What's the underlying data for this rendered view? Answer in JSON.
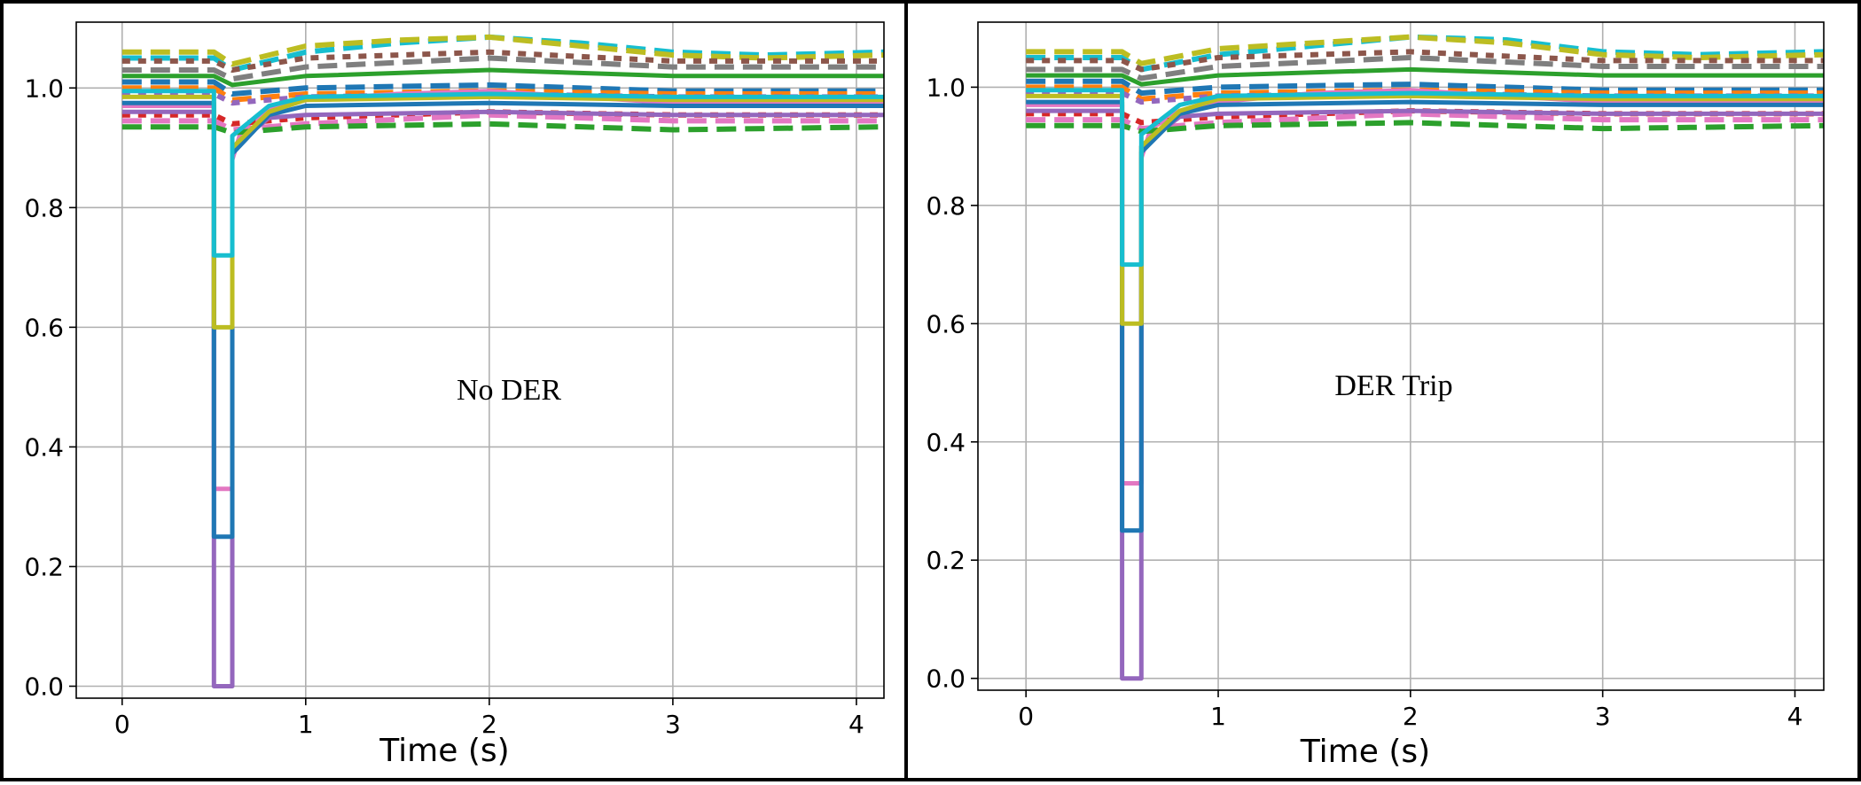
{
  "chart_data": [
    {
      "type": "line",
      "annotation": "No DER",
      "xlabel": "Time (s)",
      "ylabel": "",
      "xlim": [
        -0.25,
        4.15
      ],
      "ylim": [
        -0.02,
        1.11
      ],
      "xticks": [
        0,
        1,
        2,
        3,
        4
      ],
      "yticks": [
        0.0,
        0.2,
        0.4,
        0.6,
        0.8,
        1.0
      ],
      "xtick_labels": [
        "0",
        "1",
        "2",
        "3",
        "4"
      ],
      "ytick_labels": [
        "0.0",
        "0.2",
        "0.4",
        "0.6",
        "0.8",
        "1.0"
      ],
      "grid": true,
      "legend": "none",
      "fault_start": 0.5,
      "fault_end": 0.6,
      "series_summary": {
        "prefault_band": [
          0.93,
          1.06
        ],
        "postfault_band": [
          0.93,
          1.09
        ],
        "min_fault_voltage": 0.0,
        "peak_voltage": 1.085,
        "peak_time": 1.95
      },
      "series": [
        {
          "color": "#17becf",
          "style": "dashed",
          "x": [
            0,
            0.5,
            0.6,
            1.0,
            1.5,
            2.0,
            2.5,
            3.0,
            3.5,
            4.15
          ],
          "y": [
            1.05,
            1.05,
            1.03,
            1.06,
            1.075,
            1.085,
            1.075,
            1.06,
            1.055,
            1.06
          ]
        },
        {
          "color": "#bcbd22",
          "style": "dashed",
          "x": [
            0,
            0.5,
            0.6,
            1.0,
            1.5,
            2.0,
            2.5,
            3.0,
            3.5,
            4.15
          ],
          "y": [
            1.06,
            1.06,
            1.04,
            1.07,
            1.08,
            1.085,
            1.07,
            1.055,
            1.05,
            1.055
          ]
        },
        {
          "color": "#8c564b",
          "style": "dotted",
          "x": [
            0,
            0.5,
            0.6,
            1.0,
            2.0,
            3.0,
            4.15
          ],
          "y": [
            1.045,
            1.045,
            1.03,
            1.05,
            1.06,
            1.045,
            1.045
          ]
        },
        {
          "color": "#7f7f7f",
          "style": "dashed",
          "x": [
            0,
            0.5,
            0.6,
            1.0,
            2.0,
            3.0,
            4.15
          ],
          "y": [
            1.03,
            1.03,
            1.015,
            1.035,
            1.05,
            1.035,
            1.035
          ]
        },
        {
          "color": "#2ca02c",
          "style": "solid",
          "x": [
            0,
            0.5,
            0.6,
            1.0,
            2.0,
            3.0,
            4.15
          ],
          "y": [
            1.02,
            1.02,
            1.005,
            1.02,
            1.03,
            1.02,
            1.02
          ]
        },
        {
          "color": "#1f77b4",
          "style": "dashed",
          "x": [
            0,
            0.5,
            0.6,
            1.0,
            2.0,
            3.0,
            4.15
          ],
          "y": [
            1.01,
            1.01,
            0.99,
            1.0,
            1.005,
            0.995,
            0.995
          ]
        },
        {
          "color": "#ff7f0e",
          "style": "dashed",
          "x": [
            0,
            0.5,
            0.6,
            1.0,
            2.0,
            3.0,
            4.15
          ],
          "y": [
            1.0,
            1.0,
            0.98,
            0.99,
            0.995,
            0.99,
            0.99
          ]
        },
        {
          "color": "#9467bd",
          "style": "dotted",
          "x": [
            0,
            0.5,
            0.6,
            1.0,
            2.0,
            3.0,
            4.15
          ],
          "y": [
            0.99,
            0.99,
            0.975,
            0.985,
            0.99,
            0.985,
            0.985
          ]
        },
        {
          "color": "#e377c2",
          "style": "solid",
          "x": [
            0,
            0.5,
            0.5,
            0.6,
            0.6,
            0.65,
            0.8,
            1.0,
            1.5,
            2.0,
            2.5,
            3.0,
            4.15
          ],
          "y": [
            0.97,
            0.97,
            0.33,
            0.33,
            0.88,
            0.93,
            0.965,
            0.98,
            0.99,
            0.995,
            0.985,
            0.975,
            0.975
          ]
        },
        {
          "color": "#d62728",
          "style": "dotted",
          "x": [
            0,
            0.5,
            0.6,
            1.0,
            2.0,
            3.0,
            4.15
          ],
          "y": [
            0.955,
            0.955,
            0.94,
            0.95,
            0.96,
            0.955,
            0.955
          ]
        },
        {
          "color": "#e377c2",
          "style": "dashed",
          "x": [
            0,
            0.5,
            0.6,
            1.0,
            2.0,
            3.0,
            4.15
          ],
          "y": [
            0.945,
            0.945,
            0.93,
            0.94,
            0.955,
            0.945,
            0.945
          ]
        },
        {
          "color": "#2ca02c",
          "style": "dashed",
          "x": [
            0,
            0.5,
            0.6,
            1.0,
            2.0,
            3.0,
            4.15
          ],
          "y": [
            0.935,
            0.935,
            0.925,
            0.935,
            0.94,
            0.93,
            0.935
          ]
        },
        {
          "color": "#9467bd",
          "style": "solid",
          "x": [
            0,
            0.5,
            0.5,
            0.6,
            0.6,
            0.8,
            1.0,
            2.0,
            3.0,
            4.15
          ],
          "y": [
            0.96,
            0.96,
            0.0,
            0.0,
            0.9,
            0.95,
            0.955,
            0.96,
            0.955,
            0.955
          ]
        },
        {
          "color": "#1f77b4",
          "style": "solid",
          "x": [
            0,
            0.5,
            0.5,
            0.6,
            0.6,
            0.8,
            1.0,
            2.0,
            3.0,
            4.15
          ],
          "y": [
            0.975,
            0.975,
            0.25,
            0.25,
            0.89,
            0.955,
            0.97,
            0.975,
            0.97,
            0.97
          ]
        },
        {
          "color": "#bcbd22",
          "style": "solid",
          "x": [
            0,
            0.5,
            0.5,
            0.6,
            0.6,
            0.8,
            1.0,
            2.0,
            3.0,
            4.15
          ],
          "y": [
            0.985,
            0.985,
            0.6,
            0.6,
            0.9,
            0.96,
            0.98,
            0.985,
            0.98,
            0.98
          ]
        },
        {
          "color": "#17becf",
          "style": "solid",
          "x": [
            0,
            0.5,
            0.5,
            0.6,
            0.6,
            0.8,
            1.0,
            2.0,
            3.0,
            4.15
          ],
          "y": [
            0.995,
            0.995,
            0.72,
            0.72,
            0.92,
            0.97,
            0.985,
            0.99,
            0.985,
            0.985
          ]
        }
      ]
    },
    {
      "type": "line",
      "annotation": "DER Trip",
      "xlabel": "Time (s)",
      "ylabel": "",
      "xlim": [
        -0.25,
        4.15
      ],
      "ylim": [
        -0.02,
        1.11
      ],
      "xticks": [
        0,
        1,
        2,
        3,
        4
      ],
      "yticks": [
        0.0,
        0.2,
        0.4,
        0.6,
        0.8,
        1.0
      ],
      "xtick_labels": [
        "0",
        "1",
        "2",
        "3",
        "4"
      ],
      "ytick_labels": [
        "0.0",
        "0.2",
        "0.4",
        "0.6",
        "0.8",
        "1.0"
      ],
      "grid": true,
      "legend": "none",
      "fault_start": 0.5,
      "fault_end": 0.6,
      "series_summary": {
        "prefault_band": [
          0.93,
          1.06
        ],
        "postfault_band": [
          0.93,
          1.09
        ],
        "min_fault_voltage": 0.0,
        "peak_voltage": 1.085,
        "peak_time": 2.05
      },
      "series": [
        {
          "color": "#17becf",
          "style": "dashed",
          "x": [
            0,
            0.5,
            0.6,
            1.0,
            1.5,
            2.0,
            2.5,
            3.0,
            3.5,
            4.15
          ],
          "y": [
            1.05,
            1.05,
            1.03,
            1.055,
            1.07,
            1.085,
            1.08,
            1.06,
            1.055,
            1.06
          ]
        },
        {
          "color": "#bcbd22",
          "style": "dashed",
          "x": [
            0,
            0.5,
            0.6,
            1.0,
            1.5,
            2.0,
            2.5,
            3.0,
            3.5,
            4.15
          ],
          "y": [
            1.06,
            1.06,
            1.04,
            1.065,
            1.075,
            1.085,
            1.075,
            1.055,
            1.05,
            1.055
          ]
        },
        {
          "color": "#8c564b",
          "style": "dotted",
          "x": [
            0,
            0.5,
            0.6,
            1.0,
            2.0,
            3.0,
            4.15
          ],
          "y": [
            1.045,
            1.045,
            1.03,
            1.05,
            1.06,
            1.045,
            1.045
          ]
        },
        {
          "color": "#7f7f7f",
          "style": "dashed",
          "x": [
            0,
            0.5,
            0.6,
            1.0,
            2.0,
            3.0,
            4.15
          ],
          "y": [
            1.03,
            1.03,
            1.015,
            1.035,
            1.05,
            1.035,
            1.035
          ]
        },
        {
          "color": "#2ca02c",
          "style": "solid",
          "x": [
            0,
            0.5,
            0.6,
            1.0,
            2.0,
            3.0,
            4.15
          ],
          "y": [
            1.02,
            1.02,
            1.005,
            1.02,
            1.03,
            1.02,
            1.02
          ]
        },
        {
          "color": "#1f77b4",
          "style": "dashed",
          "x": [
            0,
            0.5,
            0.6,
            1.0,
            2.0,
            3.0,
            4.15
          ],
          "y": [
            1.01,
            1.01,
            0.99,
            1.0,
            1.005,
            0.995,
            0.995
          ]
        },
        {
          "color": "#ff7f0e",
          "style": "dashed",
          "x": [
            0,
            0.5,
            0.6,
            1.0,
            2.0,
            3.0,
            4.15
          ],
          "y": [
            1.0,
            1.0,
            0.98,
            0.99,
            0.995,
            0.99,
            0.99
          ]
        },
        {
          "color": "#9467bd",
          "style": "dotted",
          "x": [
            0,
            0.5,
            0.6,
            1.0,
            2.0,
            3.0,
            4.15
          ],
          "y": [
            0.99,
            0.99,
            0.975,
            0.985,
            0.99,
            0.985,
            0.985
          ]
        },
        {
          "color": "#e377c2",
          "style": "solid",
          "x": [
            0,
            0.5,
            0.5,
            0.6,
            0.6,
            0.65,
            0.8,
            1.0,
            1.5,
            2.0,
            2.5,
            3.0,
            4.15
          ],
          "y": [
            0.97,
            0.97,
            0.33,
            0.33,
            0.88,
            0.93,
            0.96,
            0.975,
            0.99,
            0.995,
            0.985,
            0.975,
            0.975
          ]
        },
        {
          "color": "#d62728",
          "style": "dotted",
          "x": [
            0,
            0.5,
            0.6,
            1.0,
            2.0,
            3.0,
            4.15
          ],
          "y": [
            0.955,
            0.955,
            0.94,
            0.95,
            0.96,
            0.955,
            0.955
          ]
        },
        {
          "color": "#e377c2",
          "style": "dashed",
          "x": [
            0,
            0.5,
            0.6,
            1.0,
            2.0,
            3.0,
            4.15
          ],
          "y": [
            0.945,
            0.945,
            0.93,
            0.94,
            0.955,
            0.945,
            0.945
          ]
        },
        {
          "color": "#2ca02c",
          "style": "dashed",
          "x": [
            0,
            0.5,
            0.6,
            1.0,
            2.0,
            3.0,
            4.15
          ],
          "y": [
            0.935,
            0.935,
            0.925,
            0.935,
            0.94,
            0.93,
            0.935
          ]
        },
        {
          "color": "#9467bd",
          "style": "solid",
          "x": [
            0,
            0.5,
            0.5,
            0.6,
            0.6,
            0.8,
            1.0,
            2.0,
            3.0,
            4.15
          ],
          "y": [
            0.96,
            0.96,
            0.0,
            0.0,
            0.9,
            0.95,
            0.955,
            0.96,
            0.955,
            0.955
          ]
        },
        {
          "color": "#1f77b4",
          "style": "solid",
          "x": [
            0,
            0.5,
            0.5,
            0.6,
            0.6,
            0.8,
            1.0,
            2.0,
            3.0,
            4.15
          ],
          "y": [
            0.975,
            0.975,
            0.25,
            0.25,
            0.89,
            0.955,
            0.97,
            0.975,
            0.97,
            0.97
          ]
        },
        {
          "color": "#bcbd22",
          "style": "solid",
          "x": [
            0,
            0.5,
            0.5,
            0.6,
            0.6,
            0.8,
            1.0,
            2.0,
            3.0,
            4.15
          ],
          "y": [
            0.985,
            0.985,
            0.6,
            0.6,
            0.9,
            0.96,
            0.98,
            0.985,
            0.98,
            0.98
          ]
        },
        {
          "color": "#17becf",
          "style": "solid",
          "x": [
            0,
            0.5,
            0.5,
            0.6,
            0.6,
            0.8,
            1.0,
            2.0,
            3.0,
            4.15
          ],
          "y": [
            0.995,
            0.995,
            0.7,
            0.7,
            0.92,
            0.97,
            0.985,
            0.99,
            0.985,
            0.985
          ]
        }
      ]
    }
  ]
}
